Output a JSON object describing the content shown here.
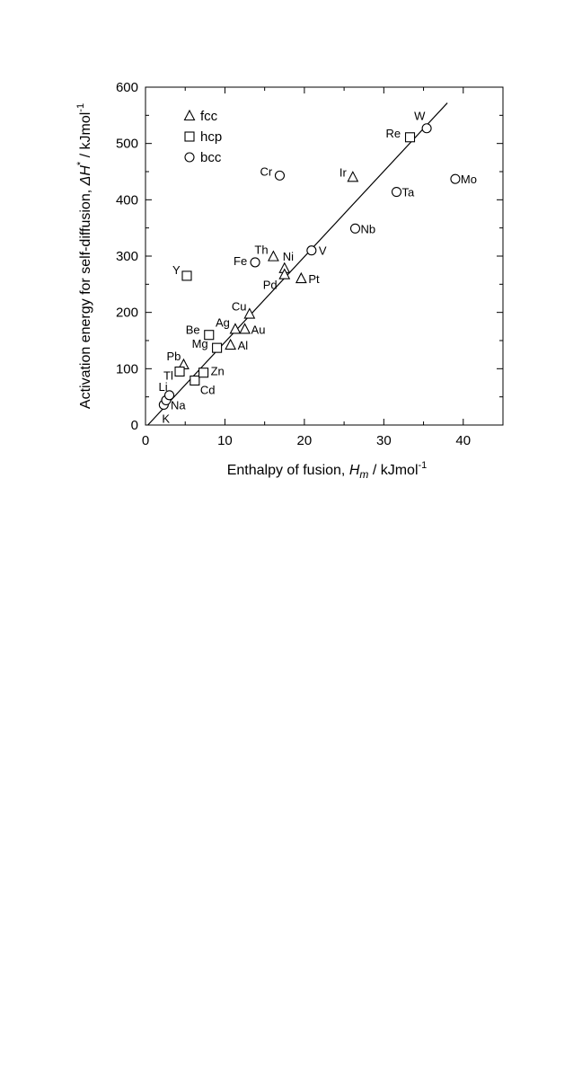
{
  "chart_data": {
    "type": "scatter",
    "xlabel": {
      "prefix": "Enthalpy of fusion, ",
      "symbol": "H",
      "sub": "m",
      "suffix": " / kJmol",
      "sup": "-1"
    },
    "ylabel": {
      "prefix": "Activation energy for self-diffusion, ",
      "symbol": "ΔH",
      "sup1": "*",
      "suffix": " / kJmol",
      "sup2": "-1"
    },
    "xlim": [
      0,
      45
    ],
    "ylim": [
      0,
      600
    ],
    "xticks": [
      0,
      10,
      20,
      30,
      40
    ],
    "yticks": [
      0,
      100,
      200,
      300,
      400,
      500,
      600
    ],
    "grid": false,
    "legend": {
      "placement": "top-left",
      "entries": [
        {
          "marker": "triangle",
          "label": "fcc"
        },
        {
          "marker": "square",
          "label": "hcp"
        },
        {
          "marker": "circle",
          "label": "bcc"
        }
      ]
    },
    "fit_line": {
      "x": [
        0.3,
        38
      ],
      "y": [
        0,
        572
      ]
    },
    "series": [
      {
        "name": "fcc",
        "marker": "triangle",
        "points": [
          {
            "label": "Pb",
            "x": 4.8,
            "y": 107
          },
          {
            "label": "Al",
            "x": 10.7,
            "y": 142
          },
          {
            "label": "Ag",
            "x": 11.3,
            "y": 170
          },
          {
            "label": "Au",
            "x": 12.5,
            "y": 170
          },
          {
            "label": "Cu",
            "x": 13.1,
            "y": 197
          },
          {
            "label": "Th",
            "x": 16.1,
            "y": 299
          },
          {
            "label": "Ni",
            "x": 17.5,
            "y": 278
          },
          {
            "label": "Pd",
            "x": 17.5,
            "y": 267
          },
          {
            "label": "Pt",
            "x": 19.6,
            "y": 260
          },
          {
            "label": "Ir",
            "x": 26.1,
            "y": 440
          }
        ]
      },
      {
        "name": "hcp",
        "marker": "square",
        "points": [
          {
            "label": "Tl",
            "x": 4.3,
            "y": 95
          },
          {
            "label": "Y",
            "x": 5.2,
            "y": 265
          },
          {
            "label": "Cd",
            "x": 6.2,
            "y": 79
          },
          {
            "label": "Zn",
            "x": 7.3,
            "y": 93
          },
          {
            "label": "Be",
            "x": 8.0,
            "y": 160
          },
          {
            "label": "Mg",
            "x": 9.0,
            "y": 137
          },
          {
            "label": "Re",
            "x": 33.3,
            "y": 511
          }
        ]
      },
      {
        "name": "bcc",
        "marker": "circle",
        "points": [
          {
            "label": "K",
            "x": 2.3,
            "y": 36
          },
          {
            "label": "Na",
            "x": 2.6,
            "y": 44
          },
          {
            "label": "Li",
            "x": 3.0,
            "y": 53
          },
          {
            "label": "Fe",
            "x": 13.8,
            "y": 289
          },
          {
            "label": "Cr",
            "x": 16.9,
            "y": 443
          },
          {
            "label": "V",
            "x": 20.9,
            "y": 310
          },
          {
            "label": "Nb",
            "x": 26.4,
            "y": 349
          },
          {
            "label": "Ta",
            "x": 31.6,
            "y": 414
          },
          {
            "label": "W",
            "x": 35.4,
            "y": 527
          },
          {
            "label": "Mo",
            "x": 39.0,
            "y": 437
          }
        ]
      }
    ]
  }
}
